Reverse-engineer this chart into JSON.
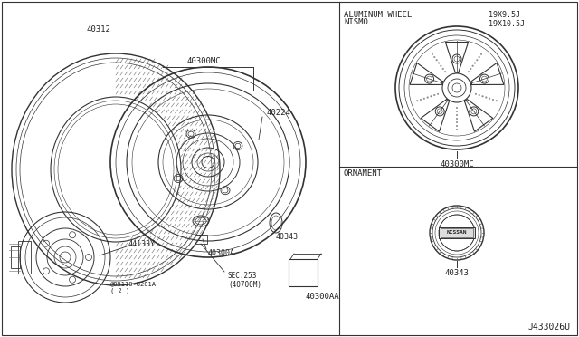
{
  "bg_color": "#ffffff",
  "diagram_id": "J433026U",
  "left_parts": {
    "tire_label": "40312",
    "wheel_label": "40300MC",
    "wheel_sub_label": "40224",
    "hub_label": "44133Y",
    "bolt_label": "40300A",
    "ornament_label": "40343",
    "sec_label": "SEC.253\n(40700M)",
    "ref_label": "@09110-8201A\n( 2 )"
  },
  "right_top": {
    "section_title": "ALUMINUM WHEEL",
    "section_subtitle": "NISMO",
    "size_label": "19X9.5J\n19X10.5J",
    "part_label": "40300MC"
  },
  "right_bottom": {
    "section_title": "ORNAMENT",
    "part_label": "40343"
  },
  "small_box_label": "40300AA",
  "line_color": "#333333",
  "text_color": "#222222"
}
